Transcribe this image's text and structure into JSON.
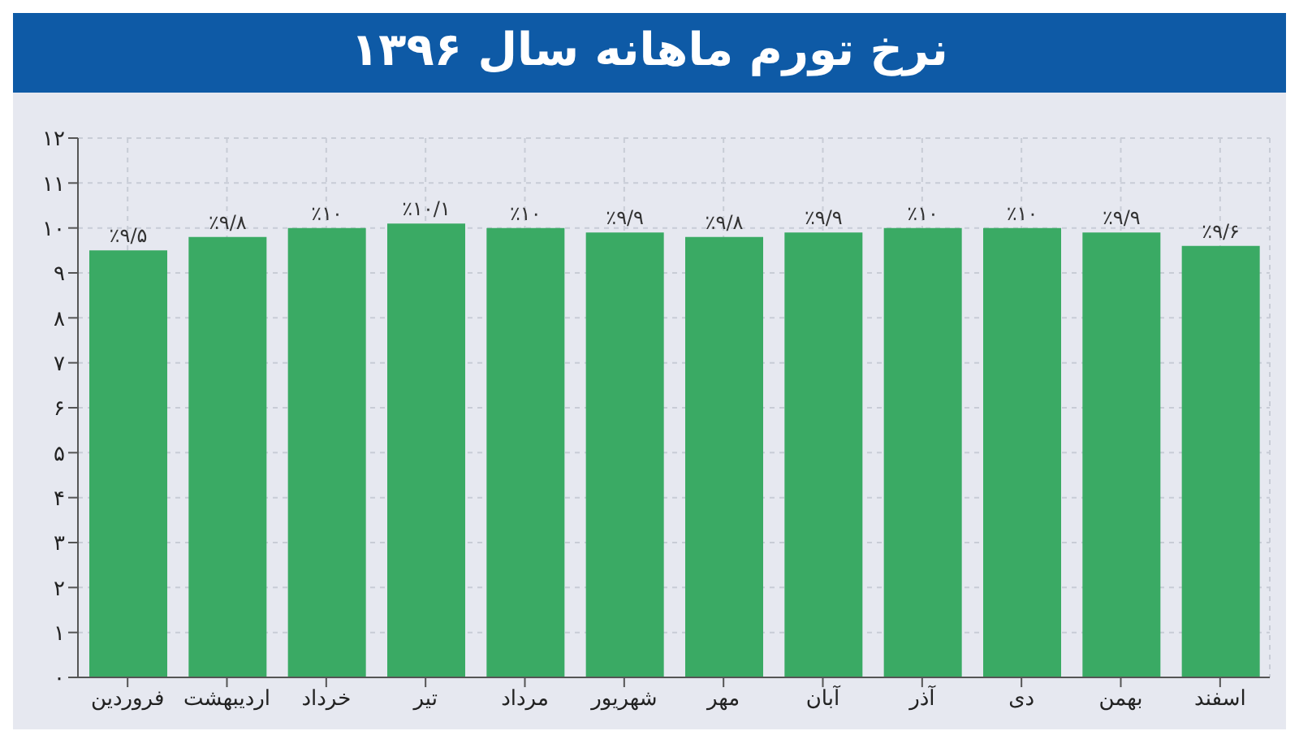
{
  "chart_data": {
    "type": "bar",
    "title": "نرخ تورم ماهانه سال ۱۳۹۶",
    "categories": [
      "فروردین",
      "اردیبهشت",
      "خرداد",
      "تیر",
      "مرداد",
      "شهریور",
      "مهر",
      "آبان",
      "آذر",
      "دی",
      "بهمن",
      "اسفند"
    ],
    "values": [
      9.5,
      9.8,
      10,
      10.1,
      10,
      9.9,
      9.8,
      9.9,
      10,
      10,
      9.9,
      9.6
    ],
    "value_labels": [
      "٪۹/۵",
      "٪۹/۸",
      "٪۱۰",
      "٪۱۰/۱",
      "٪۱۰",
      "٪۹/۹",
      "٪۹/۸",
      "٪۹/۹",
      "٪۱۰",
      "٪۱۰",
      "٪۹/۹",
      "٪۹/۶"
    ],
    "color": "#3aaa64",
    "ylim": [
      0,
      12
    ],
    "yticks": [
      {
        "value": 0,
        "label": "۰"
      },
      {
        "value": 1,
        "label": "۱"
      },
      {
        "value": 2,
        "label": "۲"
      },
      {
        "value": 3,
        "label": "۳"
      },
      {
        "value": 4,
        "label": "۴"
      },
      {
        "value": 5,
        "label": "۵"
      },
      {
        "value": 6,
        "label": "۶"
      },
      {
        "value": 7,
        "label": "۷"
      },
      {
        "value": 8,
        "label": "۸"
      },
      {
        "value": 9,
        "label": "۹"
      },
      {
        "value": 10,
        "label": "۱۰"
      },
      {
        "value": 11,
        "label": "۱۱"
      },
      {
        "value": 12,
        "label": "۱۲"
      }
    ],
    "grid": true
  }
}
